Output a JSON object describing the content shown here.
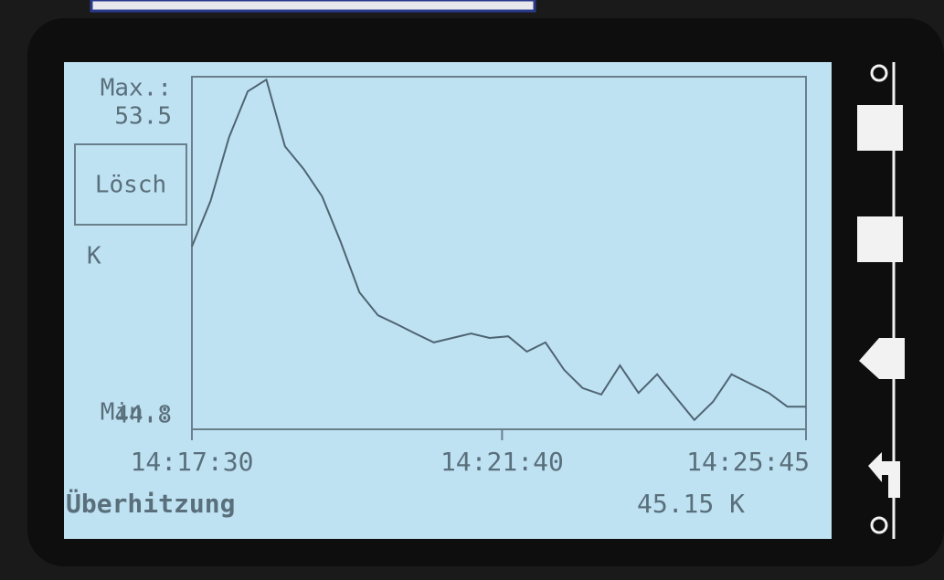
{
  "chart_data": {
    "type": "line",
    "title": "Überhitzung",
    "reading": "45.15 K",
    "button": "Lösch",
    "y_unit": "K",
    "max_label": "Max.:",
    "min_label": "Min.:",
    "x": [
      "14:17:30",
      "14:17:45",
      "14:18:00",
      "14:18:15",
      "14:18:30",
      "14:18:45",
      "14:19:00",
      "14:19:15",
      "14:19:30",
      "14:19:45",
      "14:20:00",
      "14:20:15",
      "14:20:30",
      "14:20:45",
      "14:21:00",
      "14:21:15",
      "14:21:30",
      "14:21:45",
      "14:22:00",
      "14:22:15",
      "14:22:30",
      "14:22:45",
      "14:23:00",
      "14:23:15",
      "14:23:30",
      "14:23:45",
      "14:24:00",
      "14:24:15",
      "14:24:30",
      "14:24:45",
      "14:25:00",
      "14:25:15",
      "14:25:30",
      "14:25:45"
    ],
    "series": [
      {
        "color": "#4f6472",
        "values": [
          49.32,
          50.45,
          52.03,
          53.16,
          53.45,
          51.8,
          51.24,
          50.56,
          49.43,
          48.19,
          47.62,
          47.4,
          47.17,
          46.95,
          47.06,
          47.17,
          47.06,
          47.1,
          46.72,
          46.95,
          46.27,
          45.82,
          45.66,
          46.38,
          45.7,
          46.16,
          45.59,
          45.03,
          45.48,
          46.16,
          45.93,
          45.7,
          45.36,
          45.36
        ]
      }
    ],
    "xlim": [
      "14:17:30",
      "14:25:45"
    ],
    "xticks": [
      "14:17:30",
      "14:21:40",
      "14:25:45"
    ],
    "ylim": [
      44.8,
      53.5
    ]
  }
}
